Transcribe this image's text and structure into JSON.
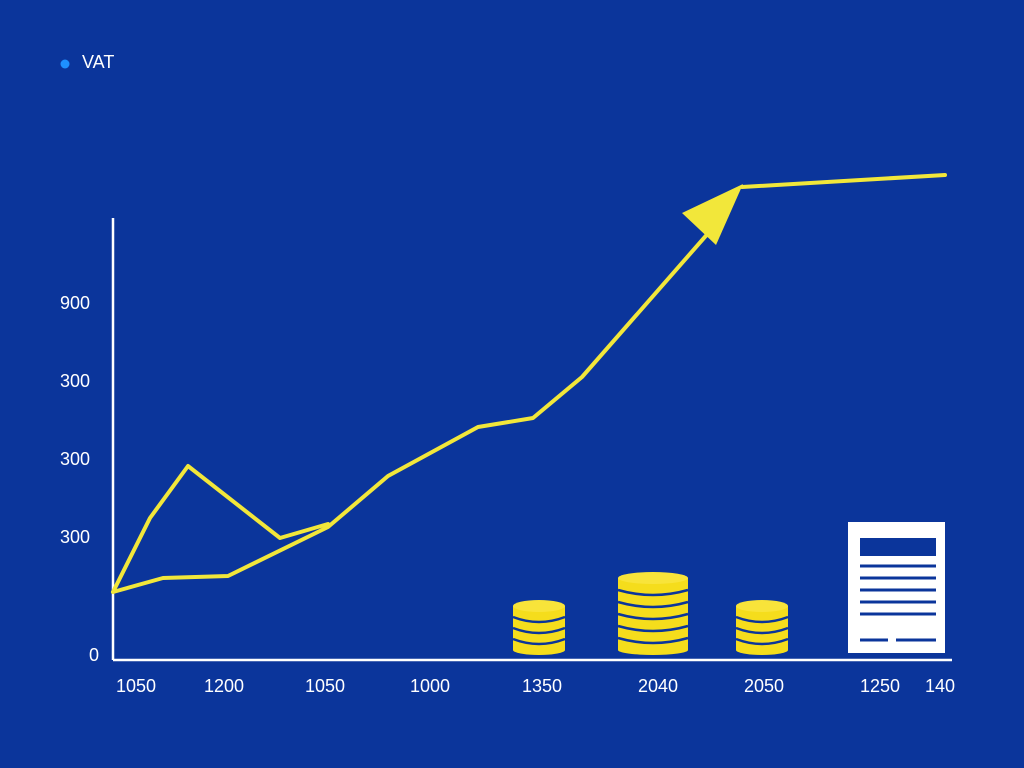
{
  "legend": {
    "label": "VAT"
  },
  "y_labels": [
    "900",
    "300",
    "300",
    "300",
    "0"
  ],
  "x_labels": [
    "1050",
    "1200",
    "1050",
    "1000",
    "1350",
    "2040",
    "2050",
    "1250",
    "140"
  ]
}
